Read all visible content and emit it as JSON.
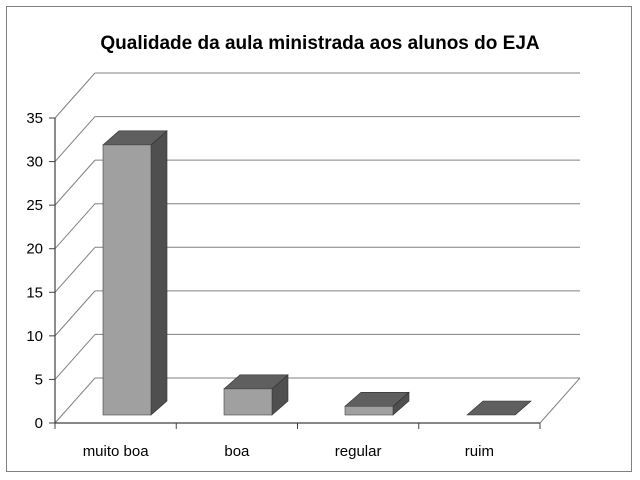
{
  "chart_data": {
    "type": "bar",
    "title": "Qualidade da aula ministrada aos alunos do EJA",
    "xlabel": "",
    "ylabel": "",
    "categories": [
      "muito boa",
      "boa",
      "regular",
      "ruim"
    ],
    "values": [
      31,
      3,
      1,
      0
    ],
    "ylim": [
      0,
      35
    ],
    "yticks": [
      0,
      5,
      10,
      15,
      20,
      25,
      30,
      35
    ],
    "grid": true,
    "legend": "none",
    "style": "3d-column",
    "colors": {
      "bar_front": "#a0a0a0",
      "bar_side": "#4f4f4f",
      "bar_top": "#5f5f5f",
      "gridline": "#808080"
    }
  }
}
